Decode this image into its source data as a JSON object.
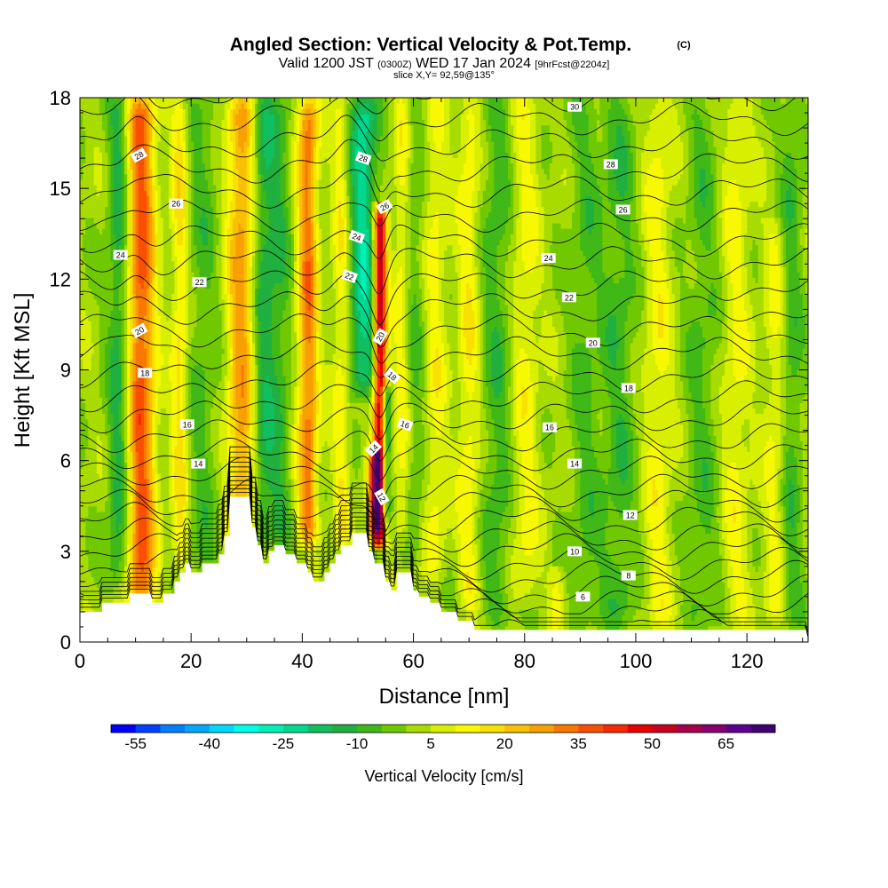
{
  "header": {
    "title": "Angled Section: Vertical Velocity & Pot.Temp.",
    "copyright": "(C)",
    "valid_prefix": "Valid 1200 JST",
    "valid_zulu": "(0300Z)",
    "valid_date": "WED 17 Jan 2024",
    "forecast": "[9hrFcst@2204z]",
    "slice": "slice X,Y= 92,59@135°"
  },
  "chart_data": {
    "type": "heatmap",
    "xlabel": "Distance [nm]",
    "ylabel": "Height [Kft MSL]",
    "xlim": [
      0,
      131
    ],
    "ylim": [
      0,
      18
    ],
    "x_ticks": [
      0,
      20,
      40,
      60,
      80,
      100,
      120
    ],
    "y_ticks": [
      0,
      3,
      6,
      9,
      12,
      15,
      18
    ],
    "colorbar": {
      "label": "Vertical Velocity [cm/s]",
      "tick_labels": [
        "-55",
        "-40",
        "-25",
        "-10",
        "5",
        "20",
        "35",
        "50",
        "65"
      ],
      "min": -60,
      "max": 75,
      "step": 5,
      "colors": [
        "#0000ff",
        "#0040ff",
        "#0080ff",
        "#00a8ff",
        "#00d8ff",
        "#00ffe8",
        "#00f0b8",
        "#00d890",
        "#10c060",
        "#20b040",
        "#40b818",
        "#70c800",
        "#a8dc00",
        "#d8f000",
        "#f8f800",
        "#f8e000",
        "#f8c000",
        "#f8a000",
        "#f87800",
        "#f85000",
        "#f82800",
        "#e80000",
        "#c80020",
        "#a80048",
        "#880070",
        "#600090",
        "#400070"
      ]
    },
    "background_value": 2,
    "updraft_bands": [
      {
        "x": 11,
        "peak": 35,
        "width": 2.5,
        "top": 18,
        "bottom": 1.0
      },
      {
        "x": 18,
        "peak": 15,
        "width": 1.5,
        "top": 18,
        "bottom": 2.0
      },
      {
        "x": 29,
        "peak": 25,
        "width": 2.5,
        "top": 18,
        "bottom": 3.0
      },
      {
        "x": 41,
        "peak": 30,
        "width": 1.8,
        "top": 18,
        "bottom": 3.0
      },
      {
        "x": 47,
        "peak": 12,
        "width": 1.5,
        "top": 18,
        "bottom": 3.0
      },
      {
        "x": 54,
        "peak": 55,
        "width": 1.2,
        "top": 14.5,
        "bottom": 3.0
      },
      {
        "x": 53,
        "peak": 35,
        "width": 1.2,
        "top": 6.5,
        "bottom": 3.0
      },
      {
        "x": 58,
        "peak": 12,
        "width": 1.5,
        "top": 18,
        "bottom": 3.0
      },
      {
        "x": 64,
        "peak": 10,
        "width": 2.0,
        "top": 18,
        "bottom": 2.0
      },
      {
        "x": 70,
        "peak": 12,
        "width": 2.0,
        "top": 18,
        "bottom": 1.0
      },
      {
        "x": 80,
        "peak": 10,
        "width": 2.5,
        "top": 18,
        "bottom": 1.0
      },
      {
        "x": 86,
        "peak": 10,
        "width": 1.5,
        "top": 2.5,
        "bottom": 0.3
      },
      {
        "x": 104,
        "peak": 10,
        "width": 2.5,
        "top": 18,
        "bottom": 0.3
      },
      {
        "x": 118,
        "peak": 9,
        "width": 2.5,
        "top": 18,
        "bottom": 0.3
      },
      {
        "x": 125,
        "peak": 9,
        "width": 2.0,
        "top": 14,
        "bottom": 0.3
      }
    ],
    "downdraft_bands": [
      {
        "x": 7,
        "peak": -15,
        "width": 2.0,
        "top": 18,
        "bottom": 1.5
      },
      {
        "x": 22,
        "peak": -8,
        "width": 3.0,
        "top": 18,
        "bottom": 2.0
      },
      {
        "x": 33,
        "peak": -15,
        "width": 2.0,
        "top": 18,
        "bottom": 3.0
      },
      {
        "x": 36,
        "peak": -10,
        "width": 2.0,
        "top": 18,
        "bottom": 3.0
      },
      {
        "x": 51,
        "peak": -25,
        "width": 2.5,
        "top": 18,
        "bottom": 8.0
      },
      {
        "x": 55,
        "peak": -28,
        "width": 0.9,
        "top": 8.5,
        "bottom": 3.5
      },
      {
        "x": 60,
        "peak": -8,
        "width": 2.0,
        "top": 18,
        "bottom": 2.5
      },
      {
        "x": 75,
        "peak": -10,
        "width": 3.0,
        "top": 18,
        "bottom": 0.5
      },
      {
        "x": 91,
        "peak": -8,
        "width": 3.0,
        "top": 18,
        "bottom": 0.3
      },
      {
        "x": 97,
        "peak": -10,
        "width": 3.0,
        "top": 18,
        "bottom": 0.3
      },
      {
        "x": 112,
        "peak": -8,
        "width": 3.0,
        "top": 18,
        "bottom": 0.3
      },
      {
        "x": 128,
        "peak": -10,
        "width": 2.0,
        "top": 18,
        "bottom": 0.3
      }
    ],
    "terrain": [
      [
        0,
        1.0
      ],
      [
        4,
        1.0
      ],
      [
        4,
        1.3
      ],
      [
        9,
        1.3
      ],
      [
        9,
        1.6
      ],
      [
        13,
        1.6
      ],
      [
        13,
        1.3
      ],
      [
        15,
        1.3
      ],
      [
        15,
        1.6
      ],
      [
        17,
        1.6
      ],
      [
        17,
        2.0
      ],
      [
        18,
        2.0
      ],
      [
        18,
        2.3
      ],
      [
        19,
        2.3
      ],
      [
        19,
        2.6
      ],
      [
        20,
        2.6
      ],
      [
        20,
        2.3
      ],
      [
        22,
        2.3
      ],
      [
        22,
        2.6
      ],
      [
        25,
        2.6
      ],
      [
        25,
        2.9
      ],
      [
        26,
        2.9
      ],
      [
        26,
        3.5
      ],
      [
        27,
        3.5
      ],
      [
        27,
        4.8
      ],
      [
        31,
        4.8
      ],
      [
        31,
        3.8
      ],
      [
        32,
        3.8
      ],
      [
        32,
        3.2
      ],
      [
        33,
        3.2
      ],
      [
        33,
        2.6
      ],
      [
        34,
        2.6
      ],
      [
        34,
        3.0
      ],
      [
        35,
        3.0
      ],
      [
        35,
        3.2
      ],
      [
        37,
        3.2
      ],
      [
        37,
        2.9
      ],
      [
        39,
        2.9
      ],
      [
        39,
        2.6
      ],
      [
        41,
        2.6
      ],
      [
        41,
        2.3
      ],
      [
        42,
        2.3
      ],
      [
        42,
        2.0
      ],
      [
        44,
        2.0
      ],
      [
        44,
        2.3
      ],
      [
        45,
        2.3
      ],
      [
        45,
        2.6
      ],
      [
        46,
        2.6
      ],
      [
        46,
        2.9
      ],
      [
        47,
        2.9
      ],
      [
        47,
        3.2
      ],
      [
        49,
        3.2
      ],
      [
        49,
        3.6
      ],
      [
        52,
        3.6
      ],
      [
        52,
        3.0
      ],
      [
        53,
        3.0
      ],
      [
        53,
        2.6
      ],
      [
        55,
        2.6
      ],
      [
        55,
        2.0
      ],
      [
        56,
        2.0
      ],
      [
        56,
        1.7
      ],
      [
        57,
        1.7
      ],
      [
        57,
        2.3
      ],
      [
        60,
        2.3
      ],
      [
        60,
        1.7
      ],
      [
        61,
        1.7
      ],
      [
        61,
        1.5
      ],
      [
        63,
        1.5
      ],
      [
        63,
        1.3
      ],
      [
        65,
        1.3
      ],
      [
        65,
        1.0
      ],
      [
        68,
        1.0
      ],
      [
        68,
        0.7
      ],
      [
        71,
        0.7
      ],
      [
        71,
        0.4
      ],
      [
        131,
        0.4
      ],
      [
        131,
        0
      ]
    ],
    "theta_levels": [
      2,
      3,
      4,
      5,
      6,
      7,
      8,
      9,
      10,
      11,
      12,
      13,
      14,
      15,
      16,
      17,
      18,
      19,
      20,
      21,
      22,
      23,
      24,
      25,
      26,
      27,
      28,
      29,
      30,
      31,
      32
    ],
    "theta_base_heights": [
      0.2,
      0.55,
      0.9,
      1.3,
      1.7,
      2.15,
      2.6,
      3.05,
      3.5,
      4.0,
      4.5,
      5.0,
      5.6,
      6.2,
      6.8,
      7.45,
      8.1,
      8.8,
      9.55,
      10.3,
      11.05,
      11.8,
      12.55,
      13.3,
      14.1,
      14.9,
      15.7,
      16.5,
      17.3,
      18.1,
      18.9
    ],
    "theta_labels": [
      {
        "text": "28",
        "x": 10.6,
        "y": 16.1,
        "rotate": -30
      },
      {
        "text": "26",
        "x": 17.3,
        "y": 14.5,
        "rotate": 0
      },
      {
        "text": "24",
        "x": 7.3,
        "y": 12.8,
        "rotate": 0
      },
      {
        "text": "22",
        "x": 21.5,
        "y": 11.9,
        "rotate": 0
      },
      {
        "text": "20",
        "x": 10.7,
        "y": 10.3,
        "rotate": -30
      },
      {
        "text": "18",
        "x": 11.7,
        "y": 8.9,
        "rotate": 0
      },
      {
        "text": "16",
        "x": 19.3,
        "y": 7.2,
        "rotate": 0
      },
      {
        "text": "14",
        "x": 21.3,
        "y": 5.9,
        "rotate": 0
      },
      {
        "text": "28",
        "x": 51.0,
        "y": 16.0,
        "rotate": 20
      },
      {
        "text": "26",
        "x": 54.8,
        "y": 14.4,
        "rotate": -30
      },
      {
        "text": "24",
        "x": 49.8,
        "y": 13.4,
        "rotate": 20
      },
      {
        "text": "22",
        "x": 48.5,
        "y": 12.1,
        "rotate": 20
      },
      {
        "text": "20",
        "x": 54.0,
        "y": 10.1,
        "rotate": -60
      },
      {
        "text": "18",
        "x": 56.2,
        "y": 8.8,
        "rotate": 40
      },
      {
        "text": "16",
        "x": 58.5,
        "y": 7.2,
        "rotate": 20
      },
      {
        "text": "14",
        "x": 52.8,
        "y": 6.4,
        "rotate": -45
      },
      {
        "text": "12",
        "x": 54.3,
        "y": 4.8,
        "rotate": 60
      },
      {
        "text": "30",
        "x": 89.0,
        "y": 17.7,
        "rotate": 0
      },
      {
        "text": "28",
        "x": 95.5,
        "y": 15.8,
        "rotate": 0
      },
      {
        "text": "26",
        "x": 97.7,
        "y": 14.3,
        "rotate": 0
      },
      {
        "text": "24",
        "x": 84.3,
        "y": 12.7,
        "rotate": 0
      },
      {
        "text": "22",
        "x": 88.0,
        "y": 11.4,
        "rotate": 0
      },
      {
        "text": "20",
        "x": 92.3,
        "y": 9.9,
        "rotate": 0
      },
      {
        "text": "18",
        "x": 98.7,
        "y": 8.4,
        "rotate": 0
      },
      {
        "text": "16",
        "x": 84.5,
        "y": 7.1,
        "rotate": 0
      },
      {
        "text": "14",
        "x": 89.0,
        "y": 5.9,
        "rotate": 0
      },
      {
        "text": "12",
        "x": 99.0,
        "y": 4.2,
        "rotate": 0
      },
      {
        "text": "10",
        "x": 89.0,
        "y": 3.0,
        "rotate": 0
      },
      {
        "text": "8",
        "x": 98.7,
        "y": 2.2,
        "rotate": 0
      },
      {
        "text": "6",
        "x": 90.5,
        "y": 1.5,
        "rotate": 0
      }
    ]
  }
}
